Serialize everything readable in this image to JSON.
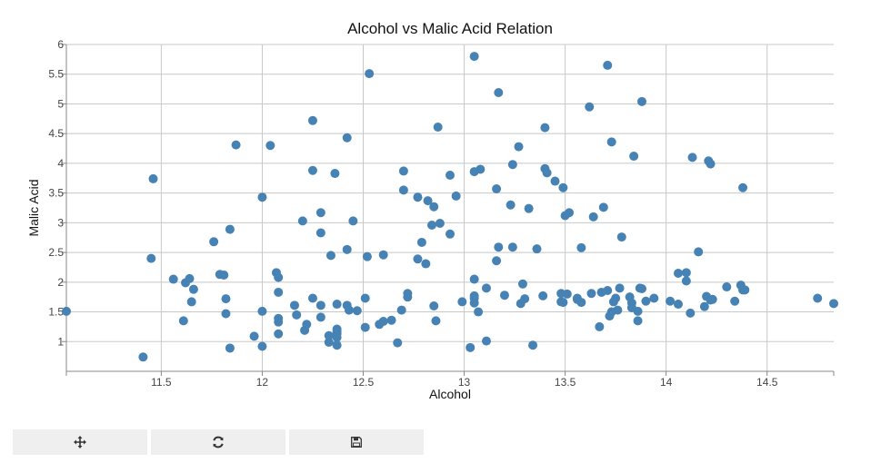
{
  "chart_data": {
    "type": "scatter",
    "title": "Alcohol vs Malic Acid Relation",
    "xlabel": "Alcohol",
    "ylabel": "Malic Acid",
    "xlim": [
      11.03,
      14.83
    ],
    "ylim": [
      0.5,
      6.0
    ],
    "x_ticks": [
      11.5,
      12,
      12.5,
      13,
      13.5,
      14,
      14.5
    ],
    "x_tick_labels": [
      "11.5",
      "12",
      "12.5",
      "13",
      "13.5",
      "14",
      "14.5"
    ],
    "y_ticks": [
      1,
      1.5,
      2,
      2.5,
      3,
      3.5,
      4,
      4.5,
      5,
      5.5,
      6
    ],
    "y_tick_labels": [
      "1",
      "1.5",
      "2",
      "2.5",
      "3",
      "3.5",
      "4",
      "4.5",
      "5",
      "5.5",
      "6"
    ],
    "grid": true,
    "point_color": "#4682b4",
    "points": [
      [
        11.03,
        1.51
      ],
      [
        11.41,
        0.74
      ],
      [
        11.45,
        2.4
      ],
      [
        11.46,
        3.74
      ],
      [
        11.56,
        2.05
      ],
      [
        11.61,
        1.35
      ],
      [
        11.62,
        1.99
      ],
      [
        11.64,
        2.06
      ],
      [
        11.65,
        1.67
      ],
      [
        11.66,
        1.88
      ],
      [
        11.76,
        2.68
      ],
      [
        11.79,
        2.13
      ],
      [
        11.81,
        2.12
      ],
      [
        11.82,
        1.72
      ],
      [
        11.82,
        1.47
      ],
      [
        11.84,
        2.89
      ],
      [
        11.84,
        0.89
      ],
      [
        11.87,
        4.31
      ],
      [
        11.96,
        1.09
      ],
      [
        12.0,
        3.43
      ],
      [
        12.0,
        1.51
      ],
      [
        12.0,
        0.92
      ],
      [
        12.04,
        4.3
      ],
      [
        12.07,
        2.16
      ],
      [
        12.08,
        2.08
      ],
      [
        12.08,
        1.83
      ],
      [
        12.08,
        1.39
      ],
      [
        12.08,
        1.33
      ],
      [
        12.08,
        1.13
      ],
      [
        12.16,
        1.61
      ],
      [
        12.17,
        1.45
      ],
      [
        12.2,
        3.03
      ],
      [
        12.21,
        1.19
      ],
      [
        12.22,
        1.29
      ],
      [
        12.25,
        4.72
      ],
      [
        12.25,
        3.88
      ],
      [
        12.25,
        1.73
      ],
      [
        12.29,
        3.17
      ],
      [
        12.29,
        2.83
      ],
      [
        12.29,
        1.61
      ],
      [
        12.29,
        1.41
      ],
      [
        12.33,
        0.99
      ],
      [
        12.34,
        2.45
      ],
      [
        12.36,
        3.83
      ],
      [
        12.37,
        1.63
      ],
      [
        12.37,
        1.21
      ],
      [
        12.37,
        1.17
      ],
      [
        12.37,
        1.13
      ],
      [
        12.37,
        1.07
      ],
      [
        12.37,
        0.94
      ],
      [
        12.33,
        1.1
      ],
      [
        12.42,
        4.43
      ],
      [
        12.42,
        2.55
      ],
      [
        12.42,
        1.61
      ],
      [
        12.43,
        1.53
      ],
      [
        12.45,
        3.03
      ],
      [
        12.47,
        1.52
      ],
      [
        12.51,
        1.73
      ],
      [
        12.51,
        1.24
      ],
      [
        12.52,
        2.43
      ],
      [
        12.53,
        5.51
      ],
      [
        12.58,
        1.29
      ],
      [
        12.6,
        2.46
      ],
      [
        12.6,
        1.34
      ],
      [
        12.64,
        1.36
      ],
      [
        12.67,
        0.98
      ],
      [
        12.69,
        1.53
      ],
      [
        12.7,
        3.87
      ],
      [
        12.7,
        3.55
      ],
      [
        12.72,
        1.81
      ],
      [
        12.72,
        1.75
      ],
      [
        12.77,
        3.43
      ],
      [
        12.77,
        2.39
      ],
      [
        12.79,
        2.67
      ],
      [
        12.81,
        2.31
      ],
      [
        12.82,
        3.37
      ],
      [
        12.84,
        2.96
      ],
      [
        12.85,
        3.27
      ],
      [
        12.85,
        1.6
      ],
      [
        12.86,
        1.35
      ],
      [
        12.87,
        4.61
      ],
      [
        12.88,
        2.99
      ],
      [
        12.93,
        3.8
      ],
      [
        12.93,
        2.81
      ],
      [
        12.96,
        3.45
      ],
      [
        12.99,
        1.67
      ],
      [
        13.03,
        0.9
      ],
      [
        13.05,
        5.8
      ],
      [
        13.05,
        3.86
      ],
      [
        13.05,
        2.05
      ],
      [
        13.05,
        1.77
      ],
      [
        13.05,
        1.73
      ],
      [
        13.05,
        1.65
      ],
      [
        13.07,
        1.5
      ],
      [
        13.08,
        3.9
      ],
      [
        13.11,
        1.01
      ],
      [
        13.11,
        1.9
      ],
      [
        13.16,
        3.57
      ],
      [
        13.16,
        2.36
      ],
      [
        13.17,
        5.19
      ],
      [
        13.17,
        2.59
      ],
      [
        13.2,
        1.78
      ],
      [
        13.23,
        3.3
      ],
      [
        13.24,
        3.98
      ],
      [
        13.24,
        2.59
      ],
      [
        13.27,
        4.28
      ],
      [
        13.28,
        1.64
      ],
      [
        13.29,
        1.97
      ],
      [
        13.3,
        1.72
      ],
      [
        13.32,
        3.24
      ],
      [
        13.34,
        0.94
      ],
      [
        13.36,
        2.56
      ],
      [
        13.39,
        1.77
      ],
      [
        13.4,
        4.6
      ],
      [
        13.4,
        3.91
      ],
      [
        13.41,
        3.84
      ],
      [
        13.45,
        3.7
      ],
      [
        13.48,
        1.81
      ],
      [
        13.48,
        1.67
      ],
      [
        13.49,
        3.59
      ],
      [
        13.49,
        1.66
      ],
      [
        13.5,
        3.12
      ],
      [
        13.51,
        1.8
      ],
      [
        13.52,
        3.17
      ],
      [
        13.56,
        1.73
      ],
      [
        13.56,
        1.71
      ],
      [
        13.58,
        2.58
      ],
      [
        13.58,
        1.66
      ],
      [
        13.62,
        4.95
      ],
      [
        13.63,
        1.81
      ],
      [
        13.64,
        3.1
      ],
      [
        13.67,
        1.25
      ],
      [
        13.68,
        1.83
      ],
      [
        13.69,
        3.26
      ],
      [
        13.71,
        5.65
      ],
      [
        13.71,
        1.86
      ],
      [
        13.72,
        1.43
      ],
      [
        13.73,
        4.36
      ],
      [
        13.73,
        1.5
      ],
      [
        13.74,
        1.67
      ],
      [
        13.75,
        1.73
      ],
      [
        13.76,
        1.53
      ],
      [
        13.77,
        1.9
      ],
      [
        13.78,
        2.76
      ],
      [
        13.82,
        1.75
      ],
      [
        13.83,
        1.65
      ],
      [
        13.83,
        1.57
      ],
      [
        13.84,
        4.12
      ],
      [
        13.86,
        1.51
      ],
      [
        13.86,
        1.35
      ],
      [
        13.87,
        1.9
      ],
      [
        13.88,
        5.04
      ],
      [
        13.88,
        1.89
      ],
      [
        13.9,
        1.68
      ],
      [
        13.94,
        1.73
      ],
      [
        14.02,
        1.68
      ],
      [
        14.06,
        2.15
      ],
      [
        14.06,
        1.63
      ],
      [
        14.1,
        2.16
      ],
      [
        14.1,
        2.02
      ],
      [
        14.12,
        1.48
      ],
      [
        14.13,
        4.1
      ],
      [
        14.16,
        2.51
      ],
      [
        14.19,
        1.59
      ],
      [
        14.2,
        1.76
      ],
      [
        14.21,
        4.04
      ],
      [
        14.22,
        3.99
      ],
      [
        14.22,
        1.7
      ],
      [
        14.23,
        1.71
      ],
      [
        14.3,
        1.92
      ],
      [
        14.34,
        1.68
      ],
      [
        14.37,
        1.95
      ],
      [
        14.38,
        3.59
      ],
      [
        14.38,
        1.87
      ],
      [
        14.39,
        1.87
      ],
      [
        14.75,
        1.73
      ],
      [
        14.83,
        1.64
      ]
    ]
  },
  "toolbar": {
    "pan_icon": "move-arrows-icon",
    "reset_icon": "refresh-icon",
    "save_icon": "floppy-disk-icon"
  }
}
